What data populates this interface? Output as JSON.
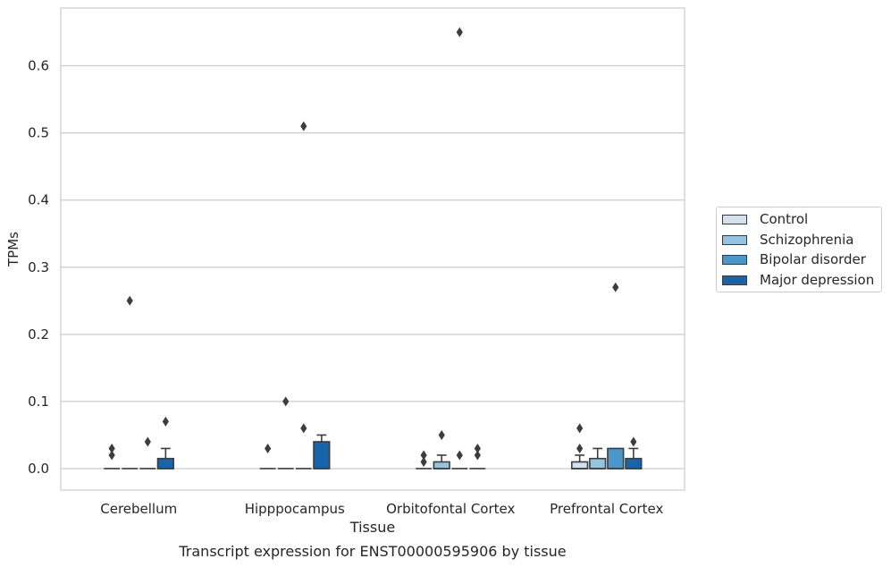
{
  "chart_data": {
    "type": "box",
    "title": "Transcript expression for ENST00000595906 by tissue",
    "xlabel": "Tissue",
    "ylabel": "TPMs",
    "ylim": [
      -0.032,
      0.686
    ],
    "yticks": [
      0.0,
      0.1,
      0.2,
      0.3,
      0.4,
      0.5,
      0.6
    ],
    "ytick_labels": [
      "0.0",
      "0.1",
      "0.2",
      "0.3",
      "0.4",
      "0.5",
      "0.6"
    ],
    "categories": [
      "Cerebellum",
      "Hipppocampus",
      "Orbitofontal Cortex",
      "Prefrontal Cortex"
    ],
    "grid": "horizontal",
    "legend_position": "right",
    "series": [
      {
        "name": "Control",
        "color": "#d0e1f2",
        "boxes": [
          {
            "q1": 0,
            "median": 0,
            "q3": 0,
            "whisker_low": 0,
            "whisker_high": 0,
            "outliers": [
              0.02,
              0.03
            ]
          },
          {
            "q1": 0,
            "median": 0,
            "q3": 0,
            "whisker_low": 0,
            "whisker_high": 0,
            "outliers": [
              0.03
            ]
          },
          {
            "q1": 0,
            "median": 0,
            "q3": 0,
            "whisker_low": 0,
            "whisker_high": 0,
            "outliers": [
              0.01,
              0.02
            ]
          },
          {
            "q1": 0,
            "median": 0,
            "q3": 0.01,
            "whisker_low": 0,
            "whisker_high": 0.02,
            "outliers": [
              0.03,
              0.06
            ]
          }
        ]
      },
      {
        "name": "Schizophrenia",
        "color": "#94c4df",
        "boxes": [
          {
            "q1": 0,
            "median": 0,
            "q3": 0,
            "whisker_low": 0,
            "whisker_high": 0,
            "outliers": [
              0.25
            ]
          },
          {
            "q1": 0,
            "median": 0,
            "q3": 0,
            "whisker_low": 0,
            "whisker_high": 0,
            "outliers": [
              0.1
            ]
          },
          {
            "q1": 0,
            "median": 0,
            "q3": 0.01,
            "whisker_low": 0,
            "whisker_high": 0.02,
            "outliers": [
              0.05
            ]
          },
          {
            "q1": 0,
            "median": 0,
            "q3": 0.015,
            "whisker_low": 0,
            "whisker_high": 0.03,
            "outliers": []
          }
        ]
      },
      {
        "name": "Bipolar disorder",
        "color": "#4a98c9",
        "boxes": [
          {
            "q1": 0,
            "median": 0,
            "q3": 0,
            "whisker_low": 0,
            "whisker_high": 0,
            "outliers": [
              0.04
            ]
          },
          {
            "q1": 0,
            "median": 0,
            "q3": 0,
            "whisker_low": 0,
            "whisker_high": 0,
            "outliers": [
              0.06,
              0.51
            ]
          },
          {
            "q1": 0,
            "median": 0,
            "q3": 0,
            "whisker_low": 0,
            "whisker_high": 0,
            "outliers": [
              0.02,
              0.65
            ]
          },
          {
            "q1": 0,
            "median": 0,
            "q3": 0.03,
            "whisker_low": 0,
            "whisker_high": 0.03,
            "outliers": [
              0.27
            ]
          }
        ]
      },
      {
        "name": "Major depression",
        "color": "#1764ab",
        "boxes": [
          {
            "q1": 0,
            "median": 0,
            "q3": 0.015,
            "whisker_low": 0,
            "whisker_high": 0.03,
            "outliers": [
              0.07
            ]
          },
          {
            "q1": 0,
            "median": 0,
            "q3": 0.04,
            "whisker_low": 0,
            "whisker_high": 0.05,
            "outliers": []
          },
          {
            "q1": 0,
            "median": 0,
            "q3": 0,
            "whisker_low": 0,
            "whisker_high": 0,
            "outliers": [
              0.02,
              0.03
            ]
          },
          {
            "q1": 0,
            "median": 0,
            "q3": 0.015,
            "whisker_low": 0,
            "whisker_high": 0.03,
            "outliers": [
              0.04
            ]
          }
        ]
      }
    ]
  }
}
